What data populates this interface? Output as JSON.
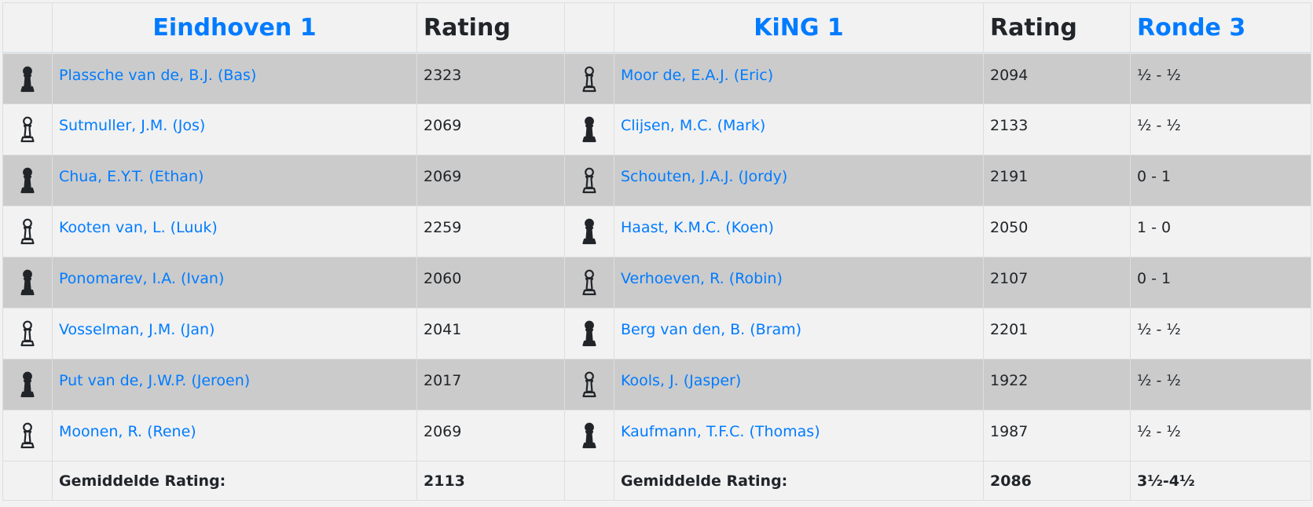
{
  "header": {
    "home_team": "Eindhoven 1",
    "rating1": "Rating",
    "away_team": "KiNG 1",
    "rating2": "Rating",
    "round": "Ronde 3"
  },
  "rows": [
    {
      "home_color": "black",
      "home": "Plassche van de, B.J. (Bas)",
      "home_rating": "2323",
      "away_color": "white",
      "away": "Moor de, E.A.J. (Eric)",
      "away_rating": "2094",
      "result": "½ - ½"
    },
    {
      "home_color": "white",
      "home": "Sutmuller, J.M. (Jos)",
      "home_rating": "2069",
      "away_color": "black",
      "away": "Clijsen, M.C. (Mark)",
      "away_rating": "2133",
      "result": "½ - ½"
    },
    {
      "home_color": "black",
      "home": "Chua, E.Y.T. (Ethan)",
      "home_rating": "2069",
      "away_color": "white",
      "away": "Schouten, J.A.J. (Jordy)",
      "away_rating": "2191",
      "result": "0 - 1"
    },
    {
      "home_color": "white",
      "home": "Kooten van, L. (Luuk)",
      "home_rating": "2259",
      "away_color": "black",
      "away": "Haast, K.M.C. (Koen)",
      "away_rating": "2050",
      "result": "1 - 0"
    },
    {
      "home_color": "black",
      "home": "Ponomarev, I.A. (Ivan)",
      "home_rating": "2060",
      "away_color": "white",
      "away": "Verhoeven, R. (Robin)",
      "away_rating": "2107",
      "result": "0 - 1"
    },
    {
      "home_color": "white",
      "home": "Vosselman, J.M. (Jan)",
      "home_rating": "2041",
      "away_color": "black",
      "away": "Berg van den, B. (Bram)",
      "away_rating": "2201",
      "result": "½ - ½"
    },
    {
      "home_color": "black",
      "home": "Put van de, J.W.P. (Jeroen)",
      "home_rating": "2017",
      "away_color": "white",
      "away": "Kools, J. (Jasper)",
      "away_rating": "1922",
      "result": "½ - ½"
    },
    {
      "home_color": "white",
      "home": "Moonen, R. (Rene)",
      "home_rating": "2069",
      "away_color": "black",
      "away": "Kaufmann, T.F.C. (Thomas)",
      "away_rating": "1987",
      "result": "½ - ½"
    }
  ],
  "footer": {
    "home_label": "Gemiddelde Rating:",
    "home_avg": "2113",
    "away_label": "Gemiddelde Rating:",
    "away_avg": "2086",
    "total": "3½-4½"
  },
  "colors": {
    "link": "#007bff",
    "stripe": "#cbcbcb",
    "background": "#f2f2f2"
  }
}
